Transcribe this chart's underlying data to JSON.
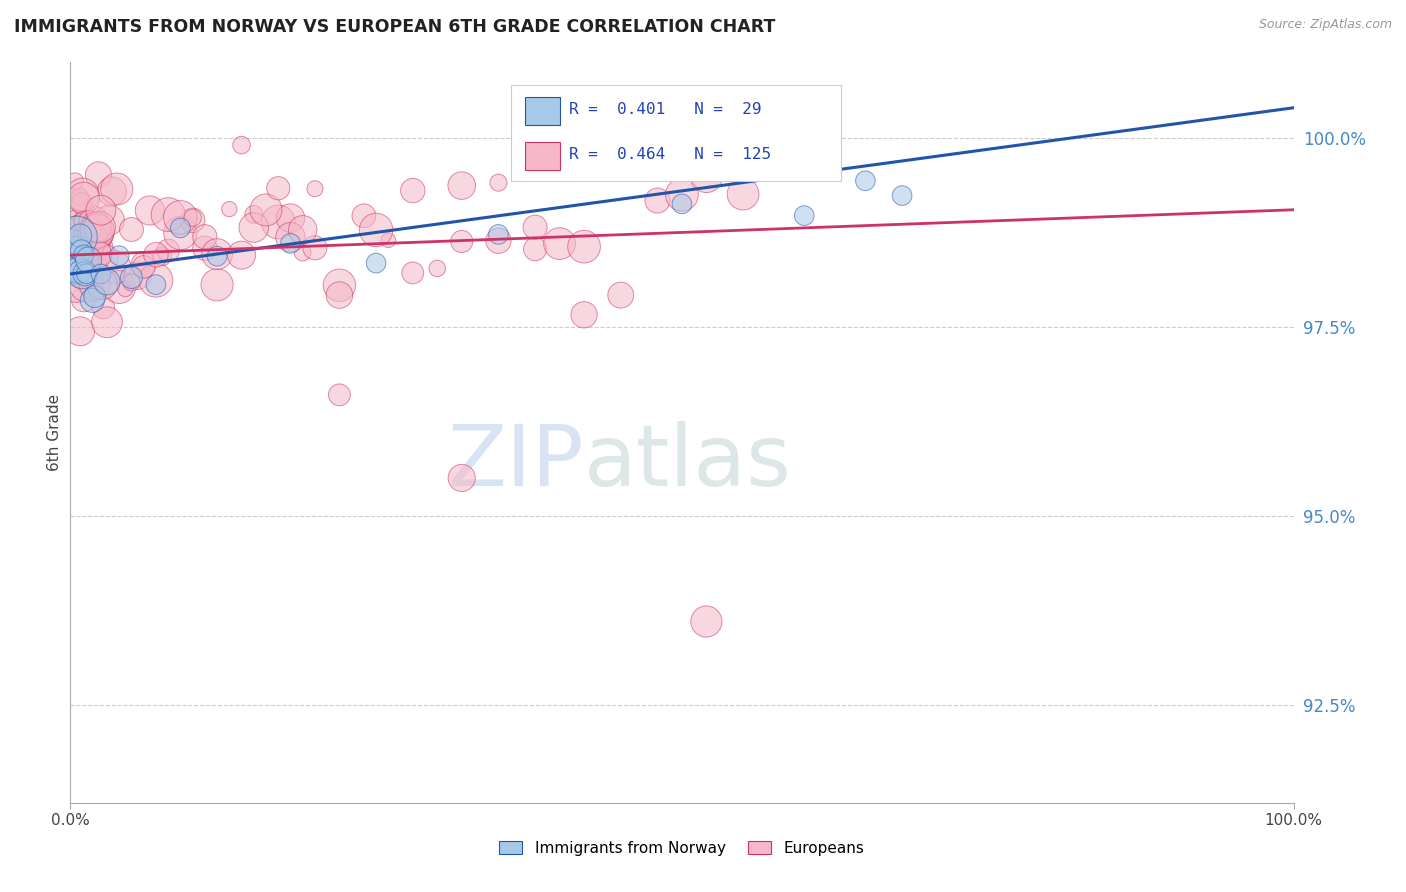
{
  "title": "IMMIGRANTS FROM NORWAY VS EUROPEAN 6TH GRADE CORRELATION CHART",
  "source": "Source: ZipAtlas.com",
  "ylabel": "6th Grade",
  "legend_label1": "Immigrants from Norway",
  "legend_label2": "Europeans",
  "r1": 0.401,
  "n1": 29,
  "r2": 0.464,
  "n2": 125,
  "color_norway": "#a8c8e8",
  "color_european": "#f4b8c8",
  "color_norway_line": "#2255aa",
  "color_european_line": "#cc3366",
  "yticks": [
    92.5,
    95.0,
    97.5,
    100.0
  ],
  "ylim": [
    91.2,
    101.0
  ],
  "xlim": [
    0.0,
    100.0
  ],
  "norway_seed": 42,
  "european_seed": 99,
  "watermark_zip": "ZIP",
  "watermark_atlas": "atlas",
  "watermark_zip_color": "#c8d8ee",
  "watermark_atlas_color": "#c8d8d8"
}
